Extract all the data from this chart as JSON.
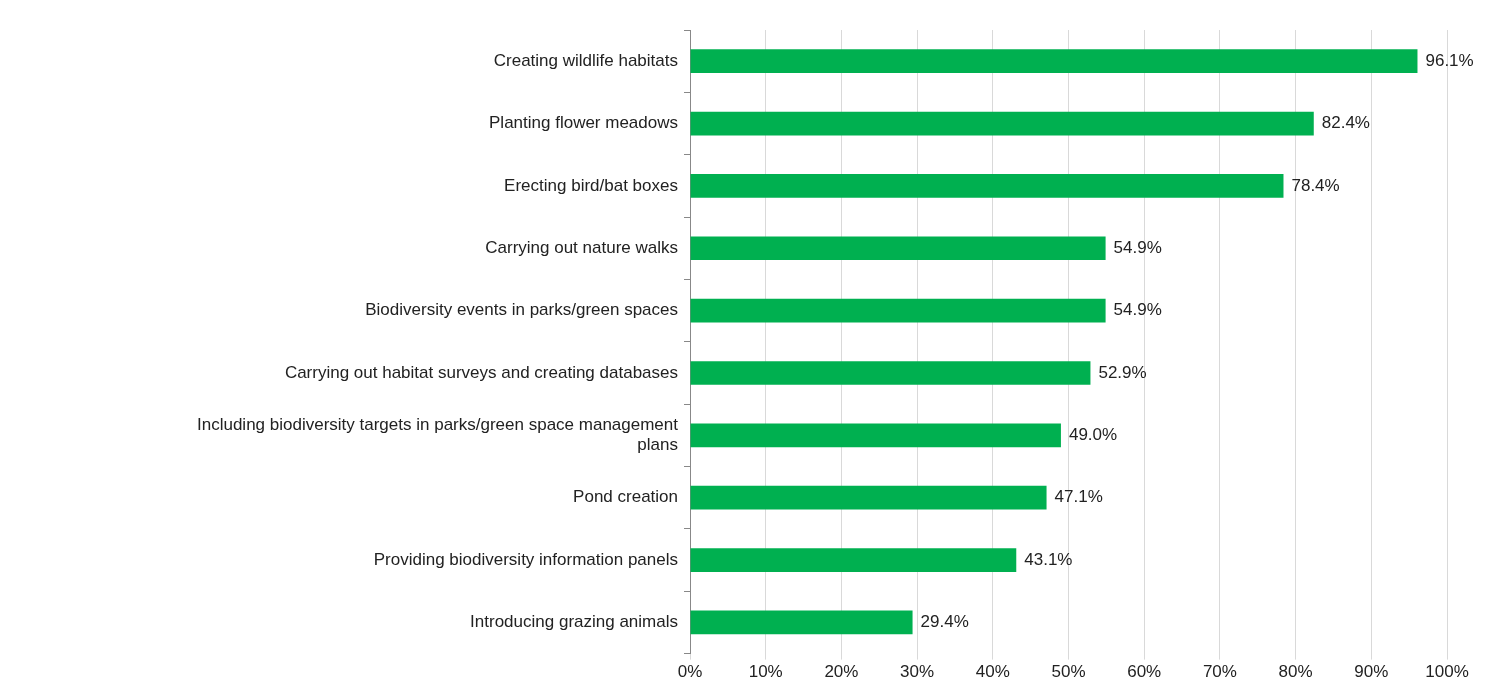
{
  "chart_data": {
    "type": "bar",
    "orientation": "horizontal",
    "categories": [
      "Creating wildlife habitats",
      "Planting flower meadows",
      "Erecting bird/bat boxes",
      "Carrying out nature walks",
      "Biodiversity events in parks/green spaces",
      "Carrying out habitat surveys and creating databases",
      "Including biodiversity targets in parks/green space management plans",
      "Pond creation",
      "Providing biodiversity information panels",
      "Introducing grazing animals"
    ],
    "values": [
      96.1,
      82.4,
      78.4,
      54.9,
      54.9,
      52.9,
      49.0,
      47.1,
      43.1,
      29.4
    ],
    "value_labels": [
      "96.1%",
      "82.4%",
      "78.4%",
      "54.9%",
      "54.9%",
      "52.9%",
      "49.0%",
      "47.1%",
      "43.1%",
      "29.4%"
    ],
    "color": "#00b050",
    "xlim": [
      0,
      100
    ],
    "xticks": [
      {
        "value": 0,
        "label": "0%"
      },
      {
        "value": 10,
        "label": "10%"
      },
      {
        "value": 20,
        "label": "20%"
      },
      {
        "value": 30,
        "label": "30%"
      },
      {
        "value": 40,
        "label": "40%"
      },
      {
        "value": 50,
        "label": "50%"
      },
      {
        "value": 60,
        "label": "60%"
      },
      {
        "value": 70,
        "label": "70%"
      },
      {
        "value": 80,
        "label": "80%"
      },
      {
        "value": 90,
        "label": "90%"
      },
      {
        "value": 100,
        "label": "100%"
      }
    ],
    "grid": "x",
    "legend": false
  }
}
